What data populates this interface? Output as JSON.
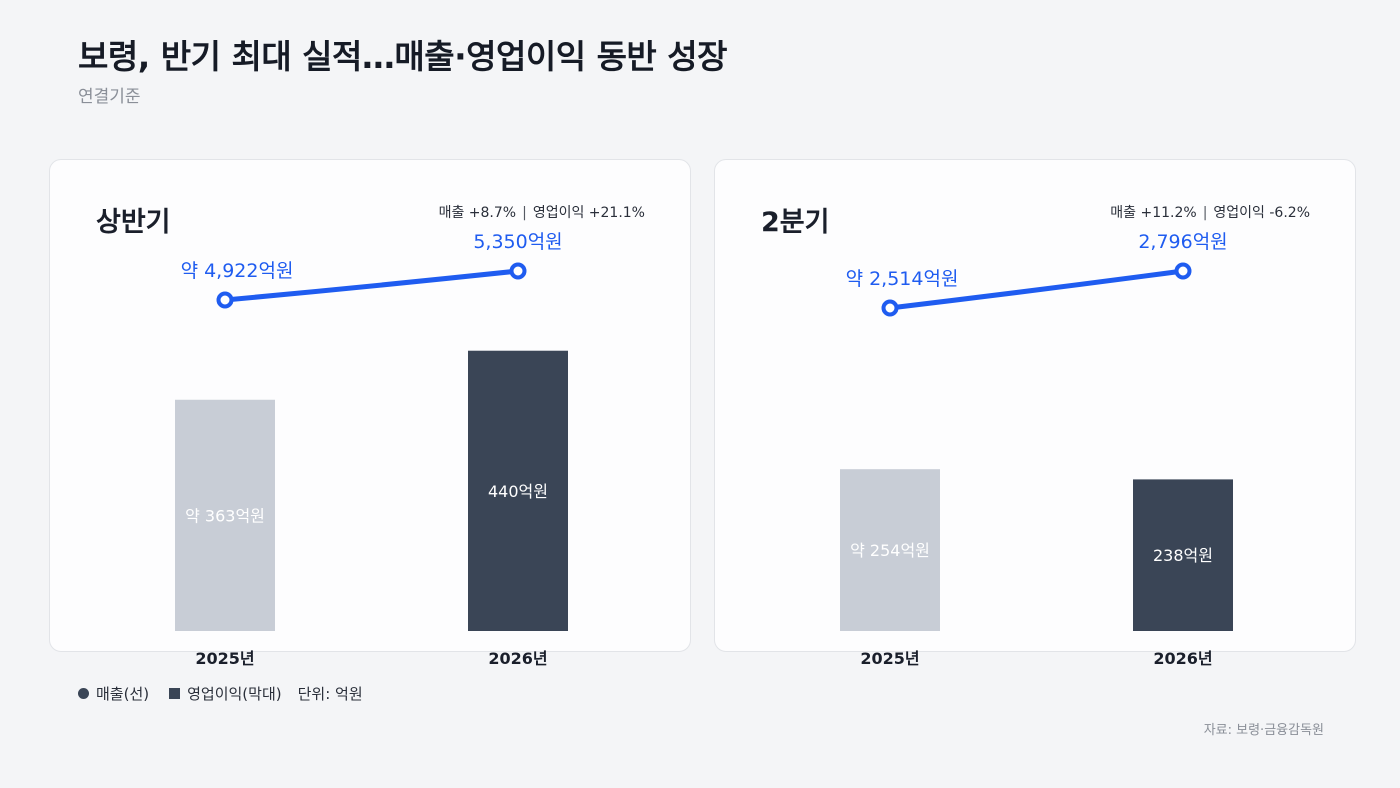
{
  "header": {
    "title": "보령, 반기 최대 실적…매출·영업이익 동반 성장",
    "subtitle": "연결기준"
  },
  "legend": {
    "revenue": "매출(선)",
    "profit": "영업이익(막대)",
    "unit": "단위: 억원"
  },
  "source": "자료: 보령·금융감독원",
  "colors": {
    "line": "#1f5cf0",
    "bar_2025": "#c8cdd6",
    "bar_2026": "#3a4556"
  },
  "chart_data": [
    {
      "type": "bar",
      "title": "상반기",
      "growth": {
        "revenue": "매출 +8.7%",
        "profit": "영업이익 +21.1%"
      },
      "categories": [
        "2025년",
        "2026년"
      ],
      "series": [
        {
          "name": "영업이익(막대)",
          "type": "bar",
          "values": [
            363,
            440
          ],
          "labels": [
            "약 363억원",
            "440억원"
          ]
        },
        {
          "name": "매출(선)",
          "type": "line",
          "values": [
            4922,
            5350
          ],
          "labels": [
            "약 4,922억원",
            "5,350억원"
          ]
        }
      ],
      "ylabel": "",
      "unit": "억원"
    },
    {
      "type": "bar",
      "title": "2분기",
      "growth": {
        "revenue": "매출 +11.2%",
        "profit": "영업이익 -6.2%"
      },
      "categories": [
        "2025년",
        "2026년"
      ],
      "series": [
        {
          "name": "영업이익(막대)",
          "type": "bar",
          "values": [
            254,
            238
          ],
          "labels": [
            "약 254억원",
            "238억원"
          ]
        },
        {
          "name": "매출(선)",
          "type": "line",
          "values": [
            2514,
            2796
          ],
          "labels": [
            "약 2,514억원",
            "2,796억원"
          ]
        }
      ],
      "ylabel": "",
      "unit": "억원"
    }
  ]
}
